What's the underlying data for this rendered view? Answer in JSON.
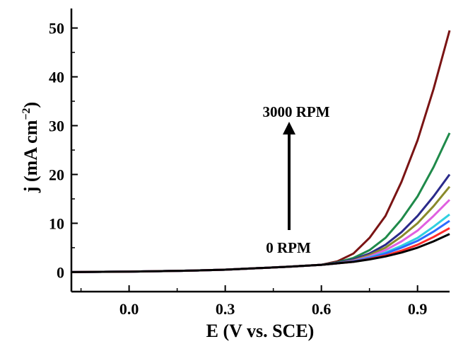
{
  "chart_data": {
    "type": "line",
    "title": "",
    "xlabel": "E (V vs. SCE)",
    "ylabel_main": "j (mA cm",
    "ylabel_sup": "−2",
    "ylabel_close": ")",
    "xlim": [
      -0.18,
      1.0
    ],
    "ylim": [
      -4,
      54
    ],
    "xticks": [
      0.0,
      0.3,
      0.6,
      0.9
    ],
    "xtick_labels": [
      "0.0",
      "0.3",
      "0.6",
      "0.9"
    ],
    "yticks": [
      0,
      10,
      20,
      30,
      40,
      50
    ],
    "ytick_labels": [
      "0",
      "10",
      "20",
      "30",
      "40",
      "50"
    ],
    "grid": false,
    "legend": "none",
    "annotations": {
      "top": "3000 RPM",
      "bottom": "0 RPM"
    },
    "x": [
      -0.18,
      0.0,
      0.2,
      0.3,
      0.4,
      0.5,
      0.6,
      0.65,
      0.7,
      0.75,
      0.8,
      0.85,
      0.9,
      0.95,
      1.0
    ],
    "series": [
      {
        "color": "#000000",
        "values": [
          0.0,
          0.1,
          0.3,
          0.5,
          0.8,
          1.1,
          1.5,
          1.8,
          2.1,
          2.6,
          3.2,
          4.0,
          5.0,
          6.3,
          7.8
        ]
      },
      {
        "color": "#ff2a2a",
        "values": [
          0.0,
          0.1,
          0.3,
          0.5,
          0.8,
          1.1,
          1.5,
          1.8,
          2.1,
          2.7,
          3.4,
          4.4,
          5.6,
          7.2,
          9.0
        ]
      },
      {
        "color": "#2a6cff",
        "values": [
          0.0,
          0.1,
          0.3,
          0.5,
          0.8,
          1.1,
          1.5,
          1.8,
          2.2,
          2.9,
          3.8,
          5.0,
          6.4,
          8.3,
          10.5
        ]
      },
      {
        "color": "#30d0e0",
        "values": [
          0.0,
          0.1,
          0.3,
          0.5,
          0.8,
          1.1,
          1.5,
          1.8,
          2.2,
          3.0,
          4.0,
          5.4,
          7.0,
          9.3,
          11.8
        ]
      },
      {
        "color": "#e060e0",
        "values": [
          0.0,
          0.1,
          0.3,
          0.5,
          0.8,
          1.1,
          1.5,
          1.8,
          2.3,
          3.2,
          4.5,
          6.3,
          8.5,
          11.5,
          14.8
        ]
      },
      {
        "color": "#8a8a2a",
        "values": [
          0.0,
          0.1,
          0.3,
          0.5,
          0.8,
          1.1,
          1.5,
          1.8,
          2.4,
          3.5,
          5.0,
          7.3,
          10.0,
          13.5,
          17.5
        ]
      },
      {
        "color": "#2a2a8a",
        "values": [
          0.0,
          0.1,
          0.3,
          0.5,
          0.8,
          1.1,
          1.5,
          1.9,
          2.6,
          3.8,
          5.6,
          8.2,
          11.5,
          15.5,
          20.0
        ]
      },
      {
        "color": "#1f8a4a",
        "values": [
          0.0,
          0.1,
          0.3,
          0.5,
          0.8,
          1.1,
          1.5,
          2.0,
          2.9,
          4.5,
          7.0,
          10.8,
          15.5,
          21.5,
          28.5
        ]
      },
      {
        "color": "#7a1414",
        "values": [
          0.0,
          0.1,
          0.3,
          0.5,
          0.8,
          1.1,
          1.5,
          2.2,
          3.8,
          7.0,
          11.5,
          18.5,
          27.0,
          37.5,
          49.5
        ]
      }
    ]
  }
}
